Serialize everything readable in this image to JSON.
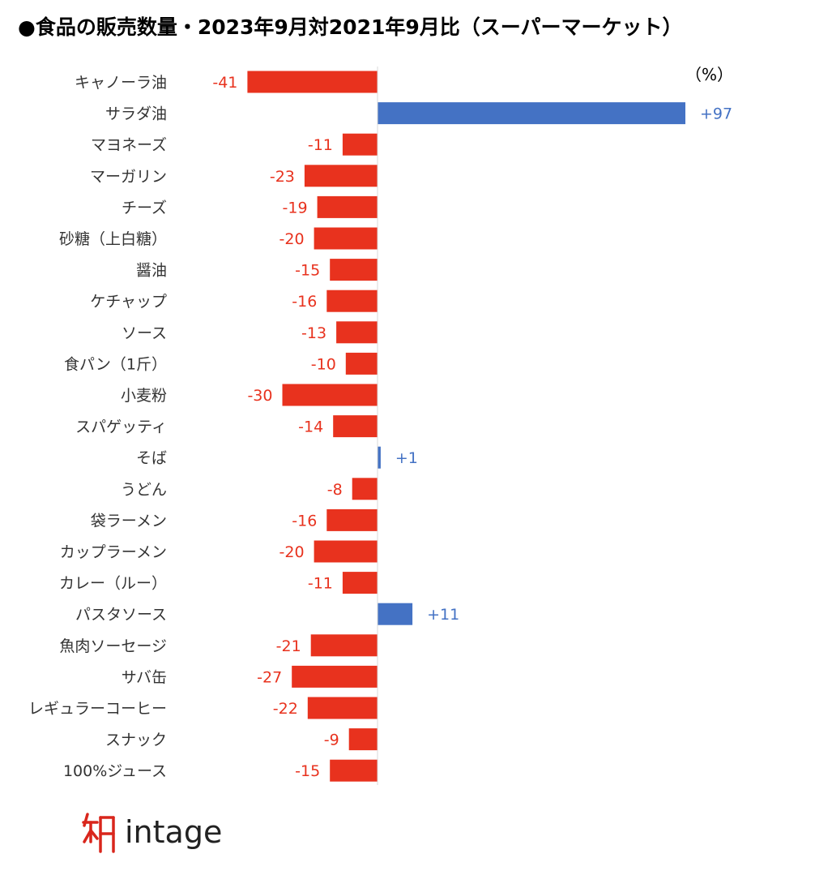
{
  "title": "●食品の販売数量・2023年9月対2021年9月比（スーパーマーケット）",
  "unit_label": "（%）",
  "logo": {
    "text": "intage"
  },
  "colors": {
    "negative": "#e8321e",
    "positive": "#4472c4",
    "axis": "#d9d9d9"
  },
  "chart_data": {
    "type": "bar",
    "orientation": "horizontal",
    "title": "●食品の販売数量・2023年9月対2021年9月比（スーパーマーケット）",
    "unit": "%",
    "categories": [
      "キャノーラ油",
      "サラダ油",
      "マヨネーズ",
      "マーガリン",
      "チーズ",
      "砂糖（上白糖）",
      "醤油",
      "ケチャップ",
      "ソース",
      "食パン（1斤）",
      "小麦粉",
      "スパゲッティ",
      "そば",
      "うどん",
      "袋ラーメン",
      "カップラーメン",
      "カレー（ルー）",
      "パスタソース",
      "魚肉ソーセージ",
      "サバ缶",
      "レギュラーコーヒー",
      "スナック",
      "100%ジュース"
    ],
    "values": [
      -41,
      97,
      -11,
      -23,
      -19,
      -20,
      -15,
      -16,
      -13,
      -10,
      -30,
      -14,
      1,
      -8,
      -16,
      -20,
      -11,
      11,
      -21,
      -27,
      -22,
      -9,
      -15
    ],
    "labels": [
      "-41",
      "+97",
      "-11",
      "-23",
      "-19",
      "-20",
      "-15",
      "-16",
      "-13",
      "-10",
      "-30",
      "-14",
      "+1",
      "-8",
      "-16",
      "-20",
      "-11",
      "+11",
      "-21",
      "-27",
      "-22",
      "-9",
      "-15"
    ],
    "xlim": [
      -41,
      97
    ],
    "grid": false,
    "legend": "none"
  }
}
